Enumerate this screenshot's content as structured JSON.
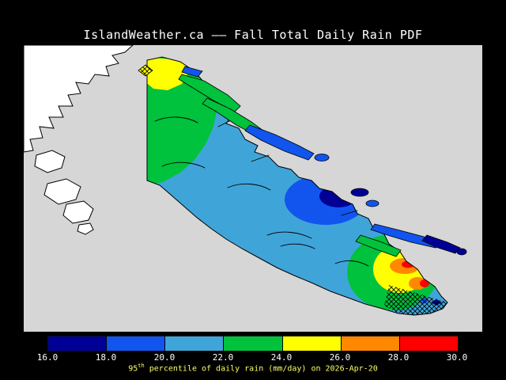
{
  "title": "IslandWeather.ca —— Fall Total Daily Rain PDF",
  "caption": {
    "num": "95",
    "sup": "th",
    "rest": " percentile of daily rain (mm/day) on 2026-Apr-20"
  },
  "colorbar": {
    "ticks": [
      "16.0",
      "18.0",
      "20.0",
      "22.0",
      "24.0",
      "26.0",
      "28.0",
      "30.0"
    ],
    "segment_colors": [
      "#000096",
      "#1155EE",
      "#3FA5D9",
      "#00C23C",
      "#FFFF00",
      "#FF8800",
      "#FF0000"
    ]
  },
  "colors": {
    "background": "#000000",
    "water": "#D6D6D6",
    "nodata": "#FFFFFF",
    "title": "#FFFFFF",
    "caption": "#FFFF66",
    "ticklabel": "#FFFFFF"
  },
  "chart_data": {
    "type": "heatmap",
    "title": "IslandWeather.ca —— Fall Total Daily Rain PDF",
    "variable": "95th percentile of daily rain (mm/day)",
    "date": "2026-Apr-20",
    "scale_ticks": [
      16.0,
      18.0,
      20.0,
      22.0,
      24.0,
      26.0,
      28.0,
      30.0
    ],
    "scale_colors": [
      "#000096",
      "#1155EE",
      "#3FA5D9",
      "#00C23C",
      "#FFFF00",
      "#FF8800",
      "#FF0000"
    ],
    "legend_position": "bottom",
    "regions": [
      {
        "area": "northern Vancouver Island",
        "value_mm_day": "22-26"
      },
      {
        "area": "central east coast blob",
        "value_mm_day": "16-20"
      },
      {
        "area": "island-wide background",
        "value_mm_day": "20-22"
      },
      {
        "area": "southeastern tip",
        "value_mm_day": "22-30"
      }
    ]
  }
}
